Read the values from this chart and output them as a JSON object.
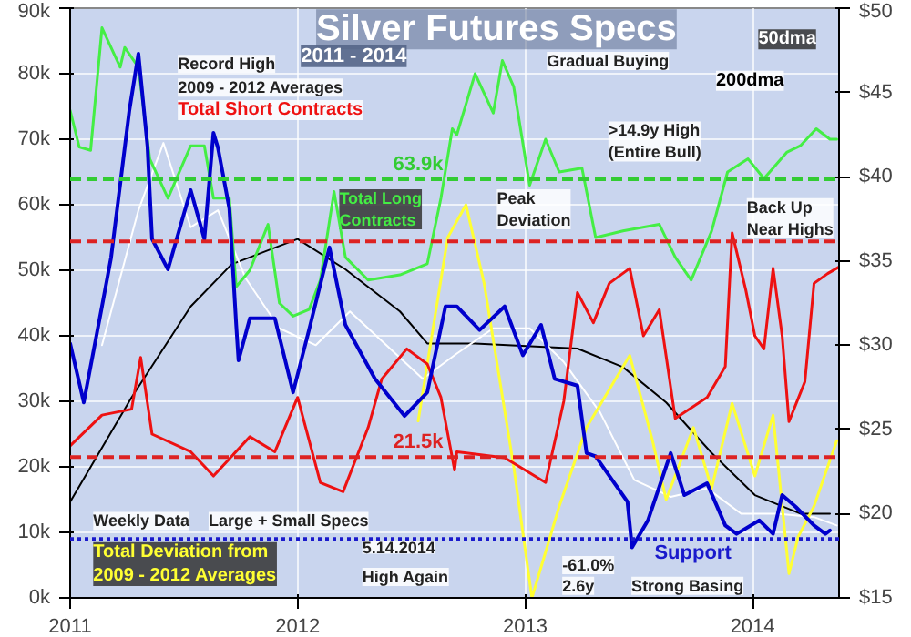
{
  "chart_data": {
    "type": "line",
    "title": "Silver Futures Specs",
    "subtitle": "2011 - 2014",
    "xlim": [
      2011,
      2014.38
    ],
    "xticks": [
      2011,
      2012,
      2013,
      2014
    ],
    "ylim": [
      0,
      90
    ],
    "yticks": [
      {
        "value": 0,
        "label": "0k"
      },
      {
        "value": 10,
        "label": "10k"
      },
      {
        "value": 20,
        "label": "20k"
      },
      {
        "value": 30,
        "label": "30k"
      },
      {
        "value": 40,
        "label": "40k"
      },
      {
        "value": 50,
        "label": "50k"
      },
      {
        "value": 60,
        "label": "60k"
      },
      {
        "value": 70,
        "label": "70k"
      },
      {
        "value": 80,
        "label": "80k"
      },
      {
        "value": 90,
        "label": "90k"
      }
    ],
    "y2lim": [
      15,
      50
    ],
    "y2ticks": [
      {
        "value": 15,
        "label": "$15"
      },
      {
        "value": 20,
        "label": "$20"
      },
      {
        "value": 25,
        "label": "$25"
      },
      {
        "value": 30,
        "label": "$30"
      },
      {
        "value": 35,
        "label": "$35"
      },
      {
        "value": 40,
        "label": "$40"
      },
      {
        "value": 45,
        "label": "$45"
      },
      {
        "value": 50,
        "label": "$50"
      }
    ],
    "grid": true,
    "marker": "none",
    "line_style": "solid",
    "series": [
      {
        "name": "200dma",
        "color": "#000000",
        "axis": "y2",
        "x": [
          2011.0,
          2011.27,
          2011.53,
          2011.71,
          2012.0,
          2012.21,
          2012.45,
          2012.57,
          2012.78,
          2013.23,
          2013.43,
          2013.62,
          2013.82,
          2014.01,
          2014.21,
          2014.34
        ],
        "values": [
          20.7,
          26.9,
          32.3,
          34.8,
          36.3,
          34.5,
          32.0,
          30.1,
          30.1,
          29.8,
          28.7,
          26.6,
          23.6,
          21.1,
          20.0,
          20.0
        ]
      },
      {
        "name": "50dma",
        "color": "#ffffff",
        "axis": "y2",
        "x": [
          2011.14,
          2011.3,
          2011.41,
          2011.53,
          2011.65,
          2011.77,
          2011.92,
          2012.08,
          2012.23,
          2012.39,
          2012.55,
          2012.7,
          2012.86,
          2013.02,
          2013.17,
          2013.33,
          2013.48,
          2013.64,
          2013.8,
          2013.95,
          2014.11,
          2014.27,
          2014.37
        ],
        "values": [
          30,
          38,
          42,
          37,
          38,
          34,
          31,
          30,
          32,
          30,
          28,
          29.5,
          31,
          31,
          29,
          26,
          22,
          21,
          21.5,
          20,
          20,
          19.8,
          19.3
        ]
      },
      {
        "name": "Total Deviation from 2009 - 2012 Averages",
        "color": "#ffff33",
        "x": [
          2012.53,
          2012.59,
          2012.66,
          2012.74,
          2012.82,
          2012.95,
          2013.03,
          2013.15,
          2013.27,
          2013.46,
          2013.56,
          2013.62,
          2013.74,
          2013.82,
          2013.91,
          2014.01,
          2014.09,
          2014.16,
          2014.2,
          2014.27,
          2014.37
        ],
        "values": [
          27,
          40,
          55,
          60,
          48,
          20,
          0,
          14,
          26,
          37,
          24,
          15,
          26,
          16.7,
          29.7,
          18.6,
          27.9,
          3.7,
          9.3,
          14,
          24
        ]
      },
      {
        "name": "Total Short Contracts",
        "color": "#ee1111",
        "x": [
          2011.0,
          2011.14,
          2011.27,
          2011.31,
          2011.36,
          2011.53,
          2011.63,
          2011.79,
          2011.9,
          2012.0,
          2012.1,
          2012.2,
          2012.31,
          2012.37,
          2012.48,
          2012.57,
          2012.63,
          2012.69,
          2012.7,
          2012.91,
          2013.09,
          2013.17,
          2013.23,
          2013.3,
          2013.37,
          2013.46,
          2013.52,
          2013.59,
          2013.66,
          2013.8,
          2013.88,
          2013.91,
          2013.97,
          2014.01,
          2014.05,
          2014.09,
          2014.13,
          2014.16,
          2014.23,
          2014.27,
          2014.33,
          2014.38
        ],
        "values": [
          23.2,
          27.9,
          28.8,
          36.7,
          25,
          22.3,
          18.6,
          24.6,
          22.3,
          30.6,
          17.6,
          16.2,
          26,
          33.4,
          38,
          35.7,
          30.6,
          19.5,
          22.3,
          21.4,
          17.6,
          30,
          46.6,
          42,
          48,
          50.3,
          40,
          44,
          27.4,
          30.6,
          35.3,
          55.7,
          47,
          40,
          38,
          50.3,
          40,
          26.9,
          33,
          48,
          49.5,
          50.5
        ]
      },
      {
        "name": "Total Long Contracts",
        "color": "#44ee44",
        "x": [
          2011.0,
          2011.04,
          2011.09,
          2011.14,
          2011.22,
          2011.24,
          2011.3,
          2011.35,
          2011.43,
          2011.53,
          2011.59,
          2011.63,
          2011.7,
          2011.73,
          2011.79,
          2011.87,
          2011.92,
          2011.98,
          2012.05,
          2012.1,
          2012.16,
          2012.21,
          2012.31,
          2012.45,
          2012.57,
          2012.63,
          2012.68,
          2012.7,
          2012.78,
          2012.86,
          2012.9,
          2012.95,
          2013.02,
          2013.09,
          2013.15,
          2013.25,
          2013.31,
          2013.43,
          2013.59,
          2013.66,
          2013.73,
          2013.82,
          2013.89,
          2013.98,
          2014.05,
          2014.15,
          2014.21,
          2014.28,
          2014.34,
          2014.37
        ],
        "values": [
          74.4,
          68.8,
          68.3,
          87,
          81,
          84,
          81,
          67,
          61,
          69,
          69,
          61,
          61,
          47.5,
          50,
          57,
          45,
          43,
          44,
          48.5,
          62,
          52,
          48.5,
          49.3,
          51,
          61,
          71.6,
          70.7,
          80,
          74,
          82,
          78,
          63,
          70,
          65,
          65.6,
          55,
          56,
          57,
          52,
          48.5,
          56,
          65,
          67,
          64,
          68,
          69,
          71.6,
          70,
          70
        ]
      },
      {
        "color": "#0000cc",
        "axis": "y2",
        "x": [
          2011.0,
          2011.06,
          2011.14,
          2011.18,
          2011.26,
          2011.3,
          2011.34,
          2011.36,
          2011.43,
          2011.53,
          2011.59,
          2011.63,
          2011.65,
          2011.7,
          2011.73,
          2011.74,
          2011.79,
          2011.9,
          2011.98,
          2012.05,
          2012.14,
          2012.21,
          2012.34,
          2012.47,
          2012.57,
          2012.65,
          2012.7,
          2012.8,
          2012.91,
          2012.99,
          2013.07,
          2013.13,
          2013.23,
          2013.27,
          2013.31,
          2013.45,
          2013.47,
          2013.54,
          2013.64,
          2013.7,
          2013.8,
          2013.88,
          2013.93,
          2014.03,
          2014.09,
          2014.13,
          2014.19,
          2014.27,
          2014.32,
          2014.34
        ],
        "values": [
          30.1,
          26.6,
          32.3,
          35.2,
          43.9,
          47.3,
          41.8,
          36.3,
          34.5,
          39.2,
          36.3,
          42.6,
          41.7,
          38.1,
          31.2,
          29.1,
          31.6,
          31.6,
          27.2,
          30.9,
          35.8,
          31.2,
          28,
          25.8,
          27.2,
          32.3,
          32.3,
          30.9,
          32.3,
          29.4,
          31.2,
          28,
          27.6,
          23.6,
          23.4,
          20.7,
          18,
          19.6,
          23.6,
          21.1,
          21.8,
          19.3,
          18.8,
          19.6,
          18.8,
          21.1,
          20.4,
          19.3,
          18.8,
          19
        ]
      }
    ],
    "ref_lines": [
      {
        "axis": "y",
        "value": 63.9,
        "label": "63.9k",
        "color": "#33cc33",
        "line_style": "dashed"
      },
      {
        "axis": "y",
        "value": 54.4,
        "color": "#dd2222",
        "line_style": "dashed"
      },
      {
        "axis": "y",
        "value": 21.5,
        "label": "21.5k",
        "color": "#dd2222",
        "line_style": "dashed"
      },
      {
        "axis": "y2",
        "value": 18.5,
        "label": "Support",
        "color": "#1a1acc",
        "line_style": "dotted"
      }
    ],
    "annotations": [
      "Record High",
      "Weekly Data",
      "Large + Small Specs",
      "Gradual Buying",
      ">14.9y High (Entire Bull)",
      "Peak Deviation",
      "2009 - 2012 Averages",
      "Back Up Near Highs",
      "High Again",
      "-61.0%",
      "2.6y",
      "5.14.2014",
      "Strong Basing"
    ]
  }
}
